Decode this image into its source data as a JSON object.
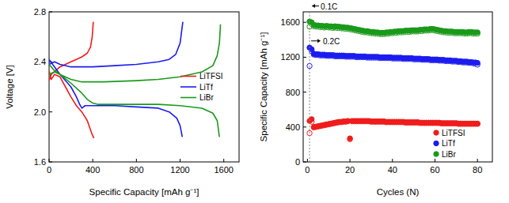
{
  "chart_data": [
    {
      "type": "line",
      "xlabel": "Specific Capacity [mAh g⁻¹]",
      "ylabel": "Voltage [V]",
      "xlim": [
        0,
        1740
      ],
      "ylim": [
        1.6,
        2.8
      ],
      "xticks": [
        0,
        400,
        800,
        1200,
        1600
      ],
      "yticks": [
        1.6,
        {
          "value": 2,
          "label": "2.0"
        },
        2.4,
        2.8
      ],
      "legend": "right",
      "series": [
        {
          "name": "LiTFSI",
          "color": "#f01c1c",
          "x": [
            0,
            20,
            50,
            100,
            150,
            200,
            250,
            300,
            350,
            390,
            410,
            null,
            0,
            20,
            60,
            100,
            150,
            200,
            250,
            300,
            350,
            380,
            395,
            405
          ],
          "values": [
            2.33,
            2.26,
            2.3,
            2.28,
            2.2,
            2.12,
            2.05,
            2.0,
            1.93,
            1.83,
            1.79,
            null,
            2.25,
            2.3,
            2.33,
            2.36,
            2.38,
            2.4,
            2.42,
            2.44,
            2.47,
            2.52,
            2.6,
            2.72
          ]
        },
        {
          "name": "LiTf",
          "color": "#1c1cf0",
          "x": [
            0,
            50,
            100,
            150,
            200,
            250,
            280,
            300,
            330,
            400,
            600,
            800,
            1000,
            1100,
            1170,
            1200,
            1220,
            null,
            0,
            50,
            100,
            200,
            400,
            600,
            800,
            1000,
            1100,
            1160,
            1200,
            1225
          ],
          "values": [
            2.42,
            2.36,
            2.3,
            2.25,
            2.2,
            2.12,
            2.06,
            2.03,
            2.05,
            2.05,
            2.05,
            2.04,
            2.03,
            2.0,
            1.95,
            1.89,
            1.8,
            null,
            2.38,
            2.4,
            2.38,
            2.36,
            2.36,
            2.37,
            2.38,
            2.4,
            2.42,
            2.46,
            2.55,
            2.72
          ]
        },
        {
          "name": "LiBr",
          "color": "#1a9a1a",
          "x": [
            0,
            50,
            100,
            200,
            300,
            350,
            400,
            450,
            600,
            800,
            1000,
            1200,
            1400,
            1500,
            1540,
            1560,
            null,
            0,
            50,
            100,
            200,
            300,
            500,
            800,
            1000,
            1200,
            1400,
            1500,
            1540,
            1560,
            1570
          ],
          "values": [
            2.38,
            2.33,
            2.3,
            2.23,
            2.15,
            2.1,
            2.07,
            2.06,
            2.06,
            2.06,
            2.06,
            2.05,
            2.03,
            1.99,
            1.93,
            1.8,
            null,
            2.3,
            2.32,
            2.3,
            2.26,
            2.24,
            2.24,
            2.25,
            2.26,
            2.28,
            2.32,
            2.37,
            2.45,
            2.55,
            2.7
          ]
        }
      ]
    },
    {
      "type": "scatter",
      "xlabel": "Cycles (N)",
      "ylabel": "Specific Capacity [mAh g⁻¹]",
      "xlim": [
        -2,
        87
      ],
      "ylim": [
        0,
        1720
      ],
      "xticks": [
        0,
        20,
        40,
        60,
        80
      ],
      "yticks": [
        0,
        400,
        800,
        1200,
        1600
      ],
      "legend": "lower right",
      "annotations": [
        {
          "text": "0.1C",
          "x": 1,
          "y": 1760
        },
        {
          "text": "0.2C",
          "x": 1,
          "y": 1360
        }
      ],
      "x": [
        1,
        2,
        3,
        4,
        5,
        6,
        7,
        8,
        9,
        10,
        11,
        12,
        13,
        14,
        15,
        16,
        17,
        18,
        19,
        20,
        21,
        22,
        23,
        24,
        25,
        26,
        27,
        28,
        29,
        30,
        31,
        32,
        33,
        34,
        35,
        36,
        37,
        38,
        39,
        40,
        41,
        42,
        43,
        44,
        45,
        46,
        47,
        48,
        49,
        50,
        51,
        52,
        53,
        54,
        55,
        56,
        57,
        58,
        59,
        60,
        61,
        62,
        63,
        64,
        65,
        66,
        67,
        68,
        69,
        70,
        71,
        72,
        73,
        74,
        75,
        76,
        77,
        78,
        79,
        80
      ],
      "series": [
        {
          "name": "LiTFSI",
          "color": "#f01c1c",
          "marker": "open",
          "values": [
            330,
            460,
            395,
            400,
            405,
            410,
            415,
            420,
            425,
            430,
            435,
            440,
            445,
            450,
            455,
            455,
            460,
            460,
            465,
            260,
            465,
            465,
            465,
            465,
            465,
            465,
            465,
            465,
            465,
            460,
            460,
            460,
            460,
            460,
            460,
            460,
            455,
            455,
            455,
            455,
            455,
            455,
            455,
            455,
            455,
            450,
            450,
            450,
            450,
            450,
            450,
            450,
            445,
            445,
            445,
            445,
            445,
            445,
            445,
            445,
            445,
            445,
            440,
            440,
            440,
            440,
            440,
            440,
            440,
            440,
            435,
            435,
            435,
            435,
            435,
            435,
            435,
            435,
            435,
            435
          ]
        },
        {
          "name": "LiTFSI",
          "color": "#f01c1c",
          "marker": "filled",
          "values": [
            470,
            490,
            400,
            405,
            410,
            415,
            420,
            425,
            430,
            435,
            440,
            445,
            450,
            455,
            460,
            460,
            465,
            465,
            470,
            270,
            470,
            470,
            470,
            470,
            470,
            470,
            470,
            470,
            470,
            465,
            465,
            465,
            465,
            465,
            465,
            465,
            460,
            460,
            460,
            460,
            460,
            460,
            460,
            460,
            460,
            455,
            455,
            455,
            455,
            455,
            455,
            455,
            450,
            450,
            450,
            450,
            450,
            450,
            450,
            450,
            450,
            450,
            445,
            445,
            445,
            445,
            445,
            445,
            445,
            445,
            440,
            440,
            440,
            440,
            440,
            440,
            440,
            440,
            440,
            440
          ]
        },
        {
          "name": "LiTf",
          "color": "#1c1cf0",
          "marker": "open",
          "values": [
            1100,
            1270,
            1230,
            1225,
            1225,
            1220,
            1220,
            1220,
            1215,
            1215,
            1215,
            1215,
            1210,
            1210,
            1210,
            1210,
            1210,
            1205,
            1205,
            1205,
            1205,
            1205,
            1200,
            1200,
            1200,
            1200,
            1200,
            1195,
            1195,
            1195,
            1195,
            1195,
            1195,
            1190,
            1190,
            1190,
            1190,
            1190,
            1190,
            1185,
            1185,
            1185,
            1185,
            1185,
            1180,
            1180,
            1180,
            1180,
            1180,
            1175,
            1175,
            1175,
            1175,
            1170,
            1170,
            1170,
            1170,
            1165,
            1165,
            1165,
            1165,
            1160,
            1160,
            1160,
            1155,
            1155,
            1155,
            1150,
            1150,
            1150,
            1145,
            1145,
            1140,
            1140,
            1140,
            1135,
            1135,
            1130,
            1125,
            1115
          ]
        },
        {
          "name": "LiTf",
          "color": "#1c1cf0",
          "marker": "filled",
          "values": [
            1310,
            1290,
            1240,
            1235,
            1235,
            1230,
            1230,
            1230,
            1225,
            1225,
            1225,
            1225,
            1220,
            1220,
            1220,
            1220,
            1220,
            1215,
            1215,
            1215,
            1215,
            1215,
            1210,
            1210,
            1210,
            1210,
            1210,
            1205,
            1205,
            1205,
            1205,
            1205,
            1205,
            1200,
            1200,
            1200,
            1200,
            1200,
            1200,
            1195,
            1195,
            1195,
            1195,
            1195,
            1190,
            1190,
            1190,
            1190,
            1190,
            1185,
            1185,
            1185,
            1185,
            1180,
            1180,
            1180,
            1180,
            1175,
            1175,
            1175,
            1175,
            1170,
            1170,
            1170,
            1165,
            1165,
            1165,
            1160,
            1160,
            1160,
            1155,
            1155,
            1150,
            1150,
            1150,
            1145,
            1145,
            1140,
            1140,
            1135
          ]
        },
        {
          "name": "LiBr",
          "color": "#1a9a1a",
          "marker": "open",
          "values": [
            1550,
            1580,
            1555,
            1550,
            1550,
            1545,
            1545,
            1540,
            1545,
            1540,
            1540,
            1535,
            1540,
            1535,
            1535,
            1530,
            1530,
            1525,
            1525,
            1520,
            1515,
            1510,
            1505,
            1500,
            1495,
            1490,
            1485,
            1485,
            1480,
            1475,
            1475,
            1470,
            1470,
            1465,
            1465,
            1465,
            1470,
            1470,
            1475,
            1475,
            1480,
            1480,
            1485,
            1485,
            1485,
            1490,
            1490,
            1490,
            1495,
            1495,
            1495,
            1495,
            1500,
            1500,
            1505,
            1505,
            1505,
            1510,
            1510,
            1505,
            1500,
            1495,
            1490,
            1485,
            1485,
            1480,
            1480,
            1480,
            1475,
            1475,
            1475,
            1475,
            1475,
            1470,
            1470,
            1475,
            1475,
            1470,
            1470,
            1470
          ]
        },
        {
          "name": "LiBr",
          "color": "#1a9a1a",
          "marker": "filled",
          "values": [
            1610,
            1600,
            1570,
            1565,
            1565,
            1560,
            1560,
            1555,
            1560,
            1555,
            1555,
            1550,
            1555,
            1550,
            1550,
            1545,
            1545,
            1540,
            1540,
            1535,
            1530,
            1525,
            1520,
            1515,
            1510,
            1505,
            1500,
            1500,
            1495,
            1490,
            1490,
            1485,
            1485,
            1480,
            1480,
            1480,
            1485,
            1485,
            1490,
            1490,
            1495,
            1495,
            1500,
            1500,
            1500,
            1505,
            1505,
            1505,
            1510,
            1510,
            1510,
            1510,
            1515,
            1515,
            1520,
            1520,
            1520,
            1525,
            1525,
            1520,
            1515,
            1510,
            1505,
            1500,
            1500,
            1495,
            1495,
            1495,
            1490,
            1490,
            1490,
            1490,
            1490,
            1485,
            1485,
            1490,
            1490,
            1485,
            1485,
            1485
          ]
        }
      ]
    }
  ]
}
